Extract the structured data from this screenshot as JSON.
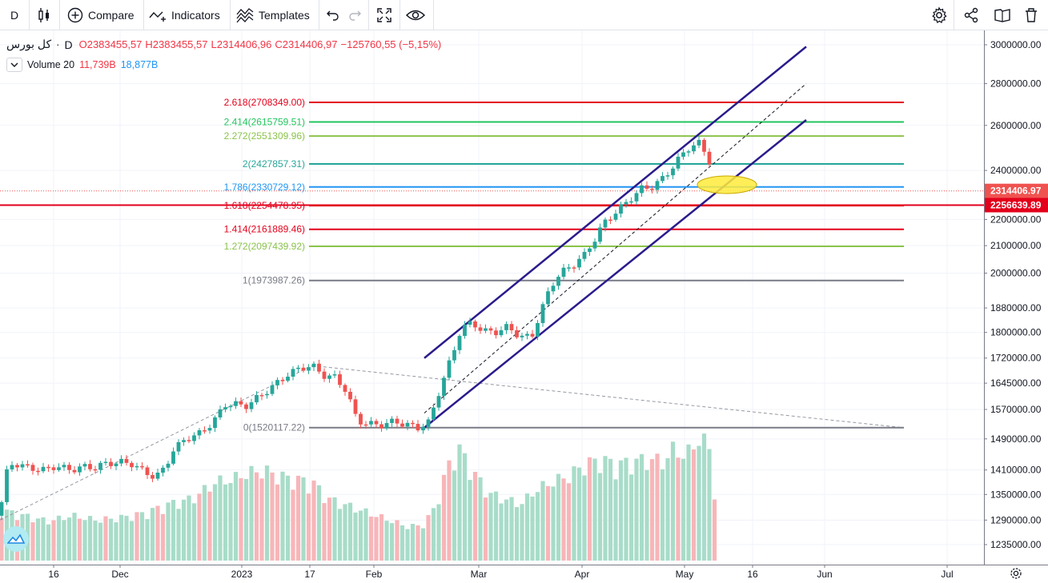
{
  "toolbar": {
    "interval": "D",
    "compare_label": "Compare",
    "indicators_label": "Indicators",
    "templates_label": "Templates"
  },
  "legend": {
    "symbol": "كل بورس",
    "interval": "D",
    "open": "O2383455,57",
    "high": "H2383455,57",
    "low": "L2314406,96",
    "close": "C2314406,97",
    "change": "−125760,55 (−5,15%)",
    "volume_name": "Volume 20",
    "volume_value": "11,739B",
    "volume_ma": "18,877B"
  },
  "price_labels": {
    "last_price": "2314406.97",
    "level_price": "2256639.89"
  },
  "colors": {
    "up": "#26a69a",
    "down": "#ef5350",
    "vol_up": "#a8dcc9",
    "vol_down": "#f7b6b9",
    "channel": "#2a1b8c",
    "last_tag": "#ef5350",
    "level_tag": "#e3001b"
  },
  "chart_data": {
    "type": "candlestick",
    "title": "كل بورس",
    "interval": "D",
    "y_scale": "log",
    "y_axis_ticks": [
      3000000,
      2800000,
      2600000,
      2400000,
      2200000,
      2100000,
      2000000,
      1880000,
      1800000,
      1720000,
      1645000,
      1570000,
      1490000,
      1410000,
      1350000,
      1290000,
      1235000
    ],
    "x_axis_ticks": [
      "16",
      "Dec",
      "2023",
      "17",
      "Feb",
      "Mar",
      "Apr",
      "May",
      "16",
      "Jun",
      "Jul"
    ],
    "fibonacci_levels": [
      {
        "label": "2.618(2708349.00)",
        "value": 2708349.0,
        "color": "#e3001b"
      },
      {
        "label": "2.414(2615759.51)",
        "value": 2615759.51,
        "color": "#22c55e"
      },
      {
        "label": "2.272(2551309.96)",
        "value": 2551309.96,
        "color": "#8bc34a"
      },
      {
        "label": "2(2427857.31)",
        "value": 2427857.31,
        "color": "#26a69a"
      },
      {
        "label": "1.786(2330729.12)",
        "value": 2330729.12,
        "color": "#2196f3"
      },
      {
        "label": "1.618(2254478.95)",
        "value": 2254478.95,
        "color": "#e3001b"
      },
      {
        "label": "1.414(2161889.46)",
        "value": 2161889.46,
        "color": "#e3001b"
      },
      {
        "label": "1.272(2097439.92)",
        "value": 2097439.92,
        "color": "#8bc34a"
      },
      {
        "label": "1(1973987.26)",
        "value": 1973987.26,
        "color": "#787b86"
      },
      {
        "label": "0(1520117.22)",
        "value": 1520117.22,
        "color": "#787b86"
      }
    ],
    "price_path": [
      [
        0,
        1300000
      ],
      [
        6,
        1395000
      ],
      [
        16,
        1428000
      ],
      [
        36,
        1415000
      ],
      [
        56,
        1410000
      ],
      [
        70,
        1420000
      ],
      [
        88,
        1410000
      ],
      [
        104,
        1418000
      ],
      [
        118,
        1416000
      ],
      [
        132,
        1426000
      ],
      [
        150,
        1430000
      ],
      [
        166,
        1425000
      ],
      [
        180,
        1405000
      ],
      [
        194,
        1392000
      ],
      [
        206,
        1415000
      ],
      [
        216,
        1460000
      ],
      [
        232,
        1490000
      ],
      [
        250,
        1505000
      ],
      [
        266,
        1535000
      ],
      [
        282,
        1585000
      ],
      [
        294,
        1585000
      ],
      [
        306,
        1578000
      ],
      [
        326,
        1610000
      ],
      [
        346,
        1645000
      ],
      [
        360,
        1672000
      ],
      [
        376,
        1690000
      ],
      [
        390,
        1697000
      ],
      [
        404,
        1668000
      ],
      [
        418,
        1662000
      ],
      [
        432,
        1625000
      ],
      [
        446,
        1540000
      ],
      [
        460,
        1530000
      ],
      [
        476,
        1527000
      ],
      [
        492,
        1537000
      ],
      [
        508,
        1528000
      ],
      [
        522,
        1520000
      ],
      [
        536,
        1535000
      ],
      [
        552,
        1645000
      ],
      [
        566,
        1735000
      ],
      [
        576,
        1815000
      ],
      [
        590,
        1830000
      ],
      [
        604,
        1805000
      ],
      [
        618,
        1800000
      ],
      [
        634,
        1818000
      ],
      [
        650,
        1786000
      ],
      [
        664,
        1786000
      ],
      [
        676,
        1870000
      ],
      [
        688,
        1955000
      ],
      [
        700,
        2000000
      ],
      [
        716,
        2030000
      ],
      [
        730,
        2065000
      ],
      [
        744,
        2130000
      ],
      [
        754,
        2185000
      ],
      [
        766,
        2220000
      ],
      [
        778,
        2255000
      ],
      [
        790,
        2290000
      ],
      [
        802,
        2325000
      ],
      [
        814,
        2330000
      ],
      [
        826,
        2360000
      ],
      [
        838,
        2405000
      ],
      [
        850,
        2460000
      ],
      [
        862,
        2505000
      ],
      [
        874,
        2520000
      ],
      [
        886,
        2440000
      ],
      [
        892,
        2314407
      ]
    ],
    "volume_path": [
      [
        0,
        0.45
      ],
      [
        30,
        0.4
      ],
      [
        60,
        0.35
      ],
      [
        90,
        0.4
      ],
      [
        120,
        0.36
      ],
      [
        150,
        0.38
      ],
      [
        180,
        0.42
      ],
      [
        210,
        0.5
      ],
      [
        240,
        0.55
      ],
      [
        270,
        0.7
      ],
      [
        290,
        0.72
      ],
      [
        310,
        0.78
      ],
      [
        330,
        0.8
      ],
      [
        350,
        0.75
      ],
      [
        370,
        0.72
      ],
      [
        390,
        0.7
      ],
      [
        410,
        0.55
      ],
      [
        430,
        0.5
      ],
      [
        450,
        0.45
      ],
      [
        470,
        0.4
      ],
      [
        490,
        0.35
      ],
      [
        510,
        0.3
      ],
      [
        530,
        0.32
      ],
      [
        545,
        0.5
      ],
      [
        560,
        0.85
      ],
      [
        573,
        1.0
      ],
      [
        590,
        0.8
      ],
      [
        610,
        0.6
      ],
      [
        630,
        0.55
      ],
      [
        650,
        0.5
      ],
      [
        670,
        0.63
      ],
      [
        690,
        0.7
      ],
      [
        710,
        0.75
      ],
      [
        730,
        0.85
      ],
      [
        750,
        0.9
      ],
      [
        770,
        0.85
      ],
      [
        790,
        0.88
      ],
      [
        810,
        0.9
      ],
      [
        830,
        0.88
      ],
      [
        842,
        1.0
      ],
      [
        856,
        0.92
      ],
      [
        872,
        1.08
      ],
      [
        880,
        1.05
      ],
      [
        887,
        1.0
      ],
      [
        893,
        0.55
      ]
    ],
    "volume_down_indices": [
      0,
      3,
      6,
      10,
      15,
      20,
      26,
      30,
      31,
      38,
      40,
      46,
      49,
      50,
      52,
      53,
      56,
      57,
      59,
      60,
      62,
      63,
      71,
      72,
      73,
      76,
      80,
      82,
      85,
      86,
      91,
      93,
      105,
      108,
      109,
      113,
      125,
      126,
      130,
      133,
      137,
      138
    ],
    "channel": {
      "upper_start": [
        530,
        1720000
      ],
      "upper_end": [
        1007,
        2990000
      ],
      "lower_start": [
        530,
        1520117
      ],
      "lower_end": [
        1007,
        2625000
      ],
      "median_end": [
        1007,
        2800000
      ]
    },
    "trendlines": [
      {
        "from": [
          0,
          1290000
        ],
        "to": [
          390,
          1697000
        ]
      },
      {
        "from": [
          390,
          1697000
        ],
        "to": [
          1128,
          1520117
        ]
      }
    ]
  }
}
